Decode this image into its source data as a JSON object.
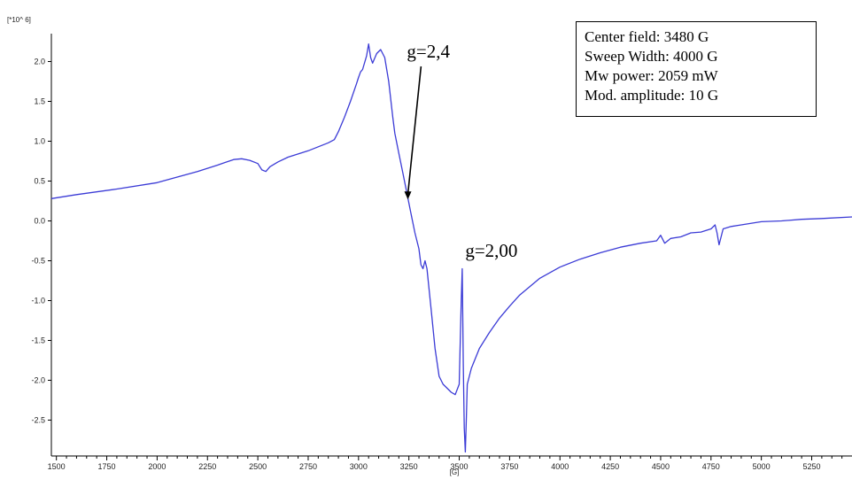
{
  "chart_data": {
    "type": "line",
    "multiplier_label": "[*10^ 6]",
    "xlabel": "[G]",
    "ylabel": "",
    "xlim": [
      1475,
      5450
    ],
    "ylim": [
      -2.95,
      2.35
    ],
    "x_ticks": [
      1500,
      1750,
      2000,
      2250,
      2500,
      2750,
      3000,
      3250,
      3500,
      3750,
      4000,
      4250,
      4500,
      4750,
      5000,
      5250
    ],
    "y_ticks": [
      2.0,
      1.5,
      1.0,
      0.5,
      0.0,
      -0.5,
      -1.0,
      -1.5,
      -2.0,
      -2.5
    ],
    "y_tick_labels": [
      "2.0",
      "1.5",
      "1.0",
      "0.5",
      "0.0",
      "-0.5",
      "-1.0",
      "-1.5",
      "-2.0",
      "-2.5"
    ],
    "series": [
      {
        "color": "#3b3bd6",
        "x": [
          1475,
          1600,
          1800,
          2000,
          2100,
          2200,
          2300,
          2380,
          2420,
          2460,
          2500,
          2520,
          2540,
          2560,
          2600,
          2650,
          2700,
          2750,
          2800,
          2850,
          2880,
          2900,
          2930,
          2960,
          2990,
          3000,
          3010,
          3020,
          3040,
          3050,
          3060,
          3070,
          3090,
          3110,
          3130,
          3150,
          3170,
          3180,
          3200,
          3220,
          3240,
          3260,
          3280,
          3300,
          3310,
          3320,
          3330,
          3340,
          3350,
          3360,
          3380,
          3400,
          3420,
          3440,
          3460,
          3480,
          3500,
          3505,
          3510,
          3515,
          3520,
          3525,
          3530,
          3535,
          3540,
          3550,
          3560,
          3600,
          3650,
          3700,
          3750,
          3800,
          3900,
          4000,
          4100,
          4200,
          4300,
          4400,
          4480,
          4500,
          4520,
          4550,
          4600,
          4650,
          4700,
          4750,
          4770,
          4780,
          4790,
          4800,
          4810,
          4850,
          4900,
          5000,
          5100,
          5200,
          5300,
          5450
        ],
        "y": [
          0.28,
          0.33,
          0.4,
          0.48,
          0.55,
          0.62,
          0.7,
          0.77,
          0.78,
          0.76,
          0.72,
          0.64,
          0.62,
          0.68,
          0.74,
          0.8,
          0.84,
          0.88,
          0.93,
          0.98,
          1.02,
          1.12,
          1.3,
          1.5,
          1.72,
          1.8,
          1.87,
          1.9,
          2.07,
          2.22,
          2.05,
          1.98,
          2.1,
          2.15,
          2.05,
          1.75,
          1.3,
          1.1,
          0.85,
          0.6,
          0.35,
          0.1,
          -0.15,
          -0.35,
          -0.55,
          -0.6,
          -0.5,
          -0.6,
          -0.85,
          -1.1,
          -1.6,
          -1.95,
          -2.05,
          -2.1,
          -2.15,
          -2.18,
          -2.05,
          -1.5,
          -1.0,
          -0.6,
          -1.8,
          -2.6,
          -2.9,
          -2.5,
          -2.05,
          -1.95,
          -1.85,
          -1.6,
          -1.4,
          -1.22,
          -1.07,
          -0.93,
          -0.72,
          -0.58,
          -0.48,
          -0.4,
          -0.33,
          -0.28,
          -0.25,
          -0.18,
          -0.28,
          -0.22,
          -0.2,
          -0.15,
          -0.14,
          -0.1,
          -0.05,
          -0.15,
          -0.3,
          -0.2,
          -0.1,
          -0.07,
          -0.05,
          -0.01,
          0.0,
          0.02,
          0.03,
          0.05
        ]
      }
    ],
    "annotations": [
      {
        "text": "g=2,4",
        "x": 3240,
        "y": 2.05,
        "arrow_to": [
          3245,
          0.27
        ]
      },
      {
        "text": "g=2,00",
        "x": 3530,
        "y": -0.45
      }
    ]
  },
  "info_box": {
    "lines": [
      "Center field: 3480 G",
      "Sweep Width: 4000 G",
      "Mw power: 2059 mW",
      "Mod. amplitude: 10 G"
    ]
  }
}
